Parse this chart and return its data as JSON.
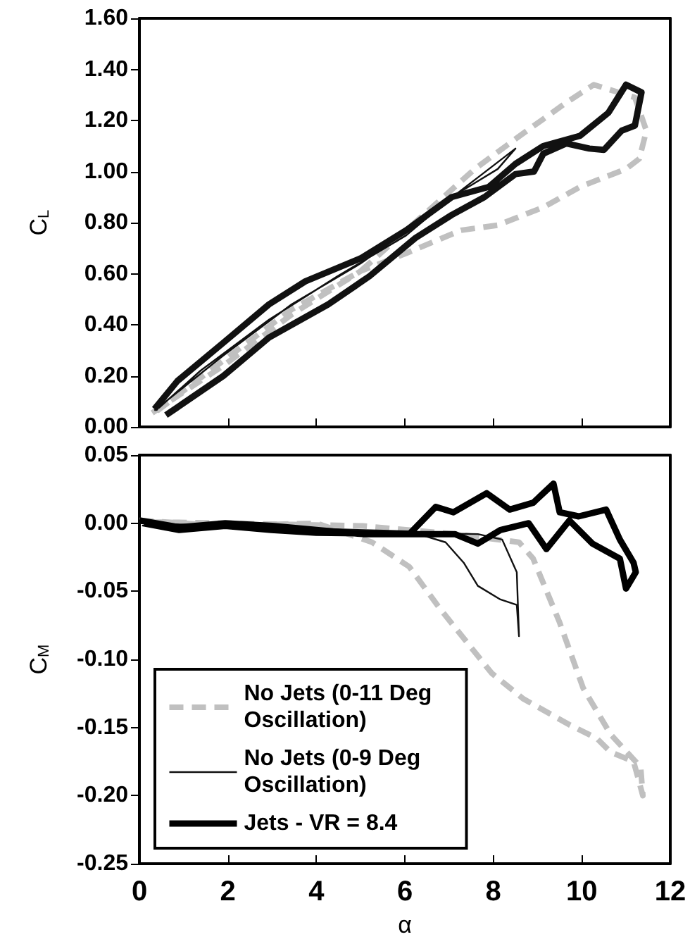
{
  "chart_data": [
    {
      "type": "line",
      "xlim": [
        0,
        12
      ],
      "xticks": [
        0,
        2,
        4,
        6,
        8,
        10,
        12
      ],
      "ylim": [
        0,
        1.6
      ],
      "yticks": [
        {
          "value": 0,
          "label": "0.00"
        },
        {
          "value": 0.2,
          "label": "0.20"
        },
        {
          "value": 0.4,
          "label": "0.40"
        },
        {
          "value": 0.6,
          "label": "0.60"
        },
        {
          "value": 0.8,
          "label": "0.80"
        },
        {
          "value": 1.0,
          "label": "1.00"
        },
        {
          "value": 1.2,
          "label": "1.20"
        },
        {
          "value": 1.4,
          "label": "1.40"
        },
        {
          "value": 1.6,
          "label": "1.60"
        }
      ],
      "ylabel": "C$_{L}$",
      "tick_labels": "y",
      "grid": false,
      "marker": "none",
      "series": [
        {
          "color": "#c0c0c0",
          "line_style": "dashed",
          "x": [
            0.29,
            1.9,
            3.44,
            5.0,
            6.03,
            7.27,
            8.1,
            9.13,
            9.96,
            11.0,
            11.3,
            11.46,
            11.2,
            10.27,
            9.65,
            8.6,
            7.58,
            6.55,
            5.0,
            3.44,
            1.9,
            0.34
          ],
          "values": [
            0.055,
            0.24,
            0.44,
            0.61,
            0.68,
            0.77,
            0.79,
            0.86,
            0.94,
            1.01,
            1.05,
            1.16,
            1.29,
            1.34,
            1.27,
            1.14,
            1.01,
            0.85,
            0.61,
            0.46,
            0.26,
            0.055
          ]
        },
        {
          "color": "#111111",
          "line_style": "solid",
          "x": [
            0.34,
            1.9,
            3.44,
            5.0,
            6.55,
            7.6,
            8.5,
            8.1,
            7.06,
            6.03,
            4.48,
            2.93,
            1.38,
            0.44
          ],
          "values": [
            0.064,
            0.28,
            0.48,
            0.64,
            0.83,
            0.97,
            1.09,
            1.01,
            0.9,
            0.75,
            0.59,
            0.42,
            0.22,
            0.074
          ]
        },
        {
          "color": "#111111",
          "line_style": "solid",
          "x": [
            0.6,
            1.9,
            2.93,
            4.27,
            5.2,
            6.24,
            7.06,
            7.8,
            8.5,
            8.92,
            9.13,
            9.65,
            10.17,
            10.5,
            10.9,
            11.2,
            11.35,
            11.0,
            10.6,
            9.96,
            9.13,
            8.5,
            7.9,
            7.06,
            6.03,
            5.0,
            3.75,
            2.93,
            1.9,
            0.86,
            0.34
          ],
          "values": [
            0.046,
            0.2,
            0.35,
            0.48,
            0.59,
            0.74,
            0.83,
            0.9,
            0.99,
            1.0,
            1.07,
            1.11,
            1.09,
            1.085,
            1.16,
            1.18,
            1.31,
            1.34,
            1.23,
            1.14,
            1.1,
            1.03,
            0.94,
            0.9,
            0.77,
            0.66,
            0.57,
            0.48,
            0.33,
            0.18,
            0.07
          ]
        }
      ]
    },
    {
      "type": "line",
      "xlim": [
        0,
        12
      ],
      "xticks": [
        0,
        2,
        4,
        6,
        8,
        10,
        12
      ],
      "ylim": [
        -0.25,
        0.05
      ],
      "yticks": [
        {
          "value": -0.25,
          "label": "-0.25"
        },
        {
          "value": -0.2,
          "label": "-0.20"
        },
        {
          "value": -0.15,
          "label": "-0.15"
        },
        {
          "value": -0.1,
          "label": "-0.10"
        },
        {
          "value": -0.05,
          "label": "-0.05"
        },
        {
          "value": 0,
          "label": "0.00"
        },
        {
          "value": 0.05,
          "label": "0.05"
        }
      ],
      "xlabel": "α",
      "ylabel": "C$_{M}$",
      "grid": false,
      "marker": "none",
      "legend": "bottom left",
      "series": [
        {
          "name": "No Jets (0-11 Deg Oscillation)",
          "color": "#c0c0c0",
          "line_style": "dashed",
          "x": [
            0,
            1.94,
            4.0,
            5.26,
            6.1,
            6.8,
            7.96,
            8.68,
            9.72,
            10.34,
            10.65,
            11.17,
            11.38,
            11.33,
            10.65,
            10.03,
            9.5,
            8.9,
            8.58,
            7.13,
            5.05,
            1.94,
            0.1
          ],
          "values": [
            0.002,
            -0.002,
            0,
            -0.014,
            -0.032,
            -0.063,
            -0.11,
            -0.129,
            -0.148,
            -0.158,
            -0.168,
            -0.175,
            -0.2,
            -0.179,
            -0.155,
            -0.121,
            -0.073,
            -0.026,
            -0.014,
            -0.008,
            -0.002,
            0,
            0.001
          ]
        },
        {
          "name": "No Jets (0-9 Deg Oscillation)",
          "color": "#111111",
          "line_style": "solid",
          "x": [
            0,
            3.0,
            6.1,
            6.92,
            7.33,
            7.65,
            8.16,
            8.53,
            8.58,
            8.53,
            8.2,
            7.65,
            6.1,
            3.0,
            0.1
          ],
          "values": [
            0,
            -0.003,
            -0.006,
            -0.014,
            -0.029,
            -0.046,
            -0.056,
            -0.06,
            -0.083,
            -0.036,
            -0.012,
            -0.008,
            -0.007,
            -0.003,
            -0.001
          ]
        },
        {
          "name": "Jets - VR = 8.4",
          "color": "#000000",
          "line_style": "solid",
          "x": [
            0,
            0.9,
            1.94,
            3.0,
            4.0,
            5.05,
            6.1,
            6.7,
            7.1,
            7.85,
            8.37,
            8.9,
            9.36,
            9.5,
            9.93,
            10.55,
            10.86,
            11.17,
            11.22,
            11.0,
            10.86,
            10.24,
            9.72,
            9.2,
            8.8,
            8.16,
            7.65,
            7.13,
            6.1,
            4.0,
            2.98,
            1.94,
            0.9,
            0.07
          ],
          "values": [
            0.002,
            -0.003,
            0,
            -0.002,
            -0.005,
            -0.008,
            -0.008,
            0.012,
            0.008,
            0.022,
            0.01,
            0.015,
            0.029,
            0.008,
            0.005,
            0.01,
            -0.012,
            -0.029,
            -0.036,
            -0.048,
            -0.026,
            -0.015,
            0.002,
            -0.019,
            0,
            -0.005,
            -0.015,
            -0.008,
            -0.008,
            -0.007,
            -0.005,
            -0.002,
            -0.005,
            0
          ]
        }
      ]
    }
  ]
}
